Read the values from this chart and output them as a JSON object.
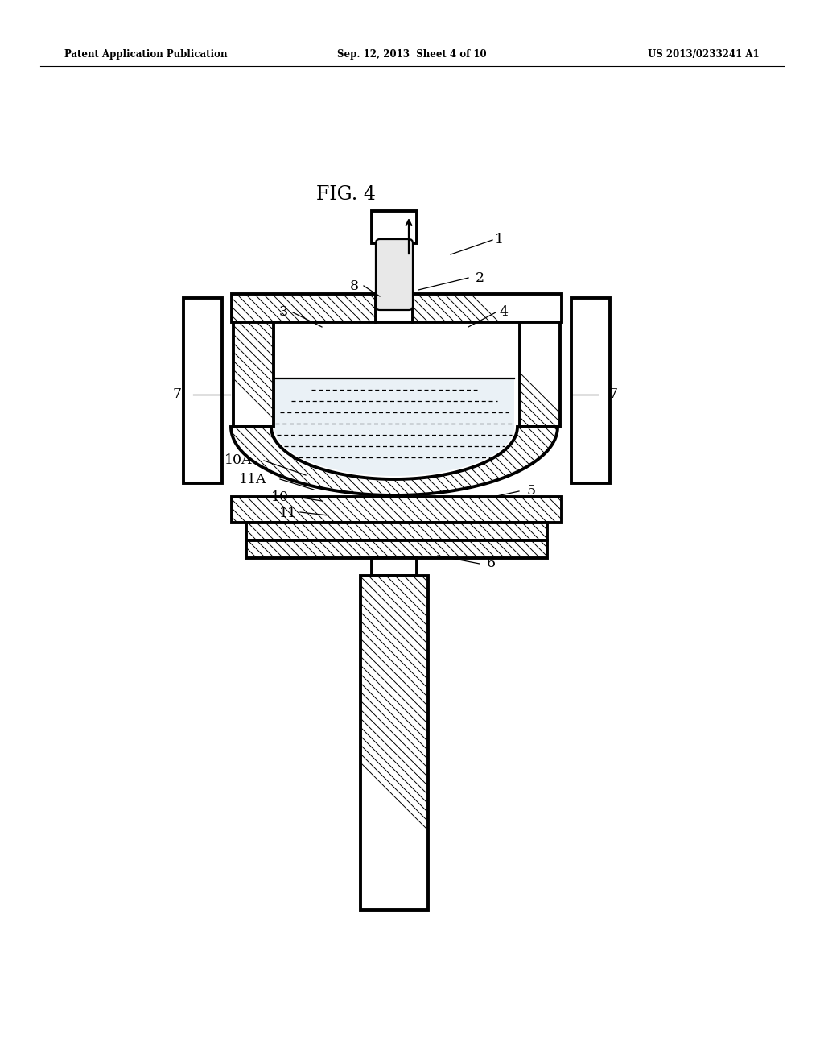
{
  "title": "FIG. 4",
  "header_left": "Patent Application Publication",
  "header_center": "Sep. 12, 2013  Sheet 4 of 10",
  "header_right": "US 2013/0233241 A1",
  "bg": "#ffffff",
  "black": "#000000"
}
